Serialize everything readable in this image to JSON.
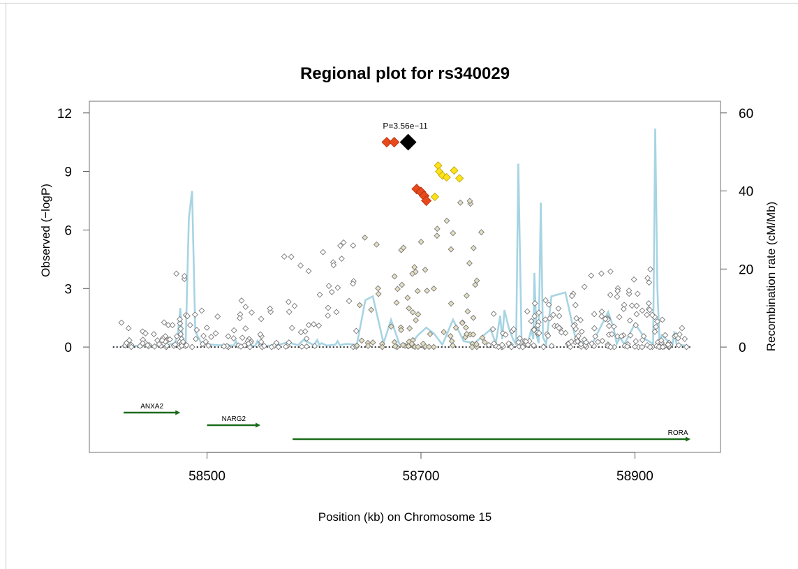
{
  "chart_data": {
    "type": "scatter",
    "title": "Regional plot for rs340029",
    "xlabel": "Position (kb) on Chromosome 15",
    "ylabel": "Observed (−logP)",
    "y2label": "Recombination rate (cM/Mb)",
    "xlim": [
      58390,
      58980
    ],
    "ylim": [
      -5.4,
      12.6
    ],
    "y2lim": [
      -27,
      63
    ],
    "xticks": [
      58500,
      58700,
      58900
    ],
    "yticks": [
      0,
      3,
      6,
      9,
      12
    ],
    "y2ticks": [
      0,
      20,
      40,
      60
    ],
    "significance_line_y": 0,
    "lead_snp": {
      "x": 58688,
      "y": 10.5,
      "label": "P=3.56e−11",
      "color": "#000000"
    },
    "ld_colors": {
      "high": "#e8491b",
      "medium": "#ffe21a",
      "low": "#e6e1c4",
      "none": "#ffffff"
    },
    "highlighted_snps": [
      {
        "x": 58668,
        "y": 10.5,
        "group": "high"
      },
      {
        "x": 58675,
        "y": 10.5,
        "group": "high"
      },
      {
        "x": 58696,
        "y": 8.1,
        "group": "high"
      },
      {
        "x": 58700,
        "y": 7.95,
        "group": "high"
      },
      {
        "x": 58703,
        "y": 7.75,
        "group": "high"
      },
      {
        "x": 58705,
        "y": 7.5,
        "group": "high"
      },
      {
        "x": 58716,
        "y": 9.3,
        "group": "medium"
      },
      {
        "x": 58717,
        "y": 9.0,
        "group": "medium"
      },
      {
        "x": 58720,
        "y": 8.8,
        "group": "medium"
      },
      {
        "x": 58724,
        "y": 8.7,
        "group": "medium"
      },
      {
        "x": 58731,
        "y": 9.05,
        "group": "medium"
      },
      {
        "x": 58736,
        "y": 8.65,
        "group": "medium"
      },
      {
        "x": 58713,
        "y": 7.7,
        "group": "medium"
      }
    ],
    "snp_clusters": [
      {
        "x_min": 58420,
        "x_max": 58480,
        "y_max": 1.5,
        "count": 45,
        "group": "none"
      },
      {
        "x_min": 58470,
        "x_max": 58480,
        "y_max": 4.5,
        "count": 6,
        "group": "none"
      },
      {
        "x_min": 58480,
        "x_max": 58560,
        "y_max": 2.0,
        "count": 45,
        "group": "none"
      },
      {
        "x_min": 58530,
        "x_max": 58560,
        "y_max": 4.2,
        "count": 4,
        "group": "none"
      },
      {
        "x_min": 58560,
        "x_max": 58640,
        "y_max": 5.5,
        "count": 45,
        "group": "none"
      },
      {
        "x_min": 58640,
        "x_max": 58700,
        "y_max": 6.3,
        "count": 45,
        "group": "low"
      },
      {
        "x_min": 58700,
        "x_max": 58760,
        "y_max": 8.0,
        "count": 45,
        "group": "low"
      },
      {
        "x_min": 58760,
        "x_max": 58840,
        "y_max": 2.5,
        "count": 60,
        "group": "none"
      },
      {
        "x_min": 58840,
        "x_max": 58920,
        "y_max": 4.0,
        "count": 90,
        "group": "none"
      },
      {
        "x_min": 58920,
        "x_max": 58950,
        "y_max": 1.5,
        "count": 25,
        "group": "none"
      }
    ],
    "recombination_rate": {
      "color": "#a7d4e3",
      "x": [
        58420,
        58425,
        58427,
        58429,
        58431,
        58433,
        58440,
        58460,
        58470,
        58473,
        58475,
        58477,
        58480,
        58483,
        58486,
        58489,
        58495,
        58510,
        58525,
        58527,
        58529,
        58545,
        58547,
        58549,
        58565,
        58575,
        58585,
        58590,
        58600,
        58603,
        58605,
        58607,
        58612,
        58620,
        58622,
        58624,
        58630,
        58640,
        58648,
        58655,
        58665,
        58672,
        58680,
        58690,
        58697,
        58705,
        58712,
        58720,
        58730,
        58740,
        58750,
        58765,
        58770,
        58774,
        58776,
        58778,
        58782,
        58786,
        58789,
        58791,
        58794,
        58800,
        58803,
        58805,
        58806,
        58808,
        58810,
        58812,
        58814,
        58817,
        58822,
        58835,
        58845,
        58860,
        58875,
        58880,
        58883,
        58886,
        58890,
        58900,
        58910,
        58917,
        58919,
        58921,
        58923,
        58925,
        58935,
        58937,
        58939,
        58950
      ],
      "y": [
        0.3,
        0.3,
        2.0,
        0.4,
        0.3,
        0.3,
        0.3,
        0.3,
        1.0,
        4.0,
        10.0,
        2.0,
        0.8,
        33.0,
        40.0,
        4.0,
        0.8,
        0.5,
        0.4,
        1.5,
        0.4,
        0.3,
        1.5,
        0.3,
        0.4,
        1.2,
        0.5,
        1.8,
        0.5,
        1.8,
        0.5,
        1.0,
        0.4,
        0.6,
        1.5,
        0.5,
        0.8,
        0.6,
        12.0,
        13.0,
        1.0,
        7.0,
        0.7,
        0.6,
        3.0,
        5.0,
        3.5,
        0.6,
        7.0,
        1.5,
        1.0,
        4.5,
        1.0,
        8.0,
        2.0,
        9.5,
        5.0,
        2.0,
        0.7,
        47.0,
        2.0,
        1.0,
        4.5,
        2.0,
        19.0,
        3.0,
        1.0,
        37.0,
        2.5,
        0.8,
        13.0,
        14.0,
        1.5,
        0.8,
        9.0,
        5.0,
        0.8,
        2.5,
        0.7,
        6.0,
        2.0,
        0.8,
        56.0,
        15.0,
        1.0,
        3.0,
        0.6,
        4.0,
        0.6,
        0.3
      ]
    },
    "genes": [
      {
        "name": "ANXA2",
        "start": 58422,
        "end": 58475,
        "row": 0
      },
      {
        "name": "NARG2",
        "start": 58500,
        "end": 58550,
        "row": 1
      },
      {
        "name": "RORA",
        "start": 58580,
        "end": 58952,
        "row": 2
      }
    ],
    "gene_color": "#1a6b1a"
  }
}
